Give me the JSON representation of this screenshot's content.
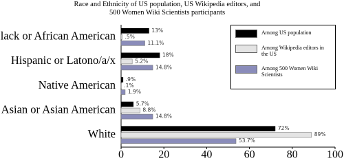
{
  "chart_data": {
    "type": "hbar",
    "title": "Race and Ethnicity of US population, US Wikipedia editors, and 500 Women Wiki Scientists participants",
    "categories": [
      "Black or African American",
      "Hispanic or Latono/a/x",
      "Native American",
      "Asian or Asian American",
      "White"
    ],
    "series": [
      {
        "name": "Among US population",
        "color": "#000000",
        "values": [
          13,
          18,
          0.9,
          5.7,
          72
        ],
        "value_labels": [
          "13%",
          "18%",
          ".9%",
          "5.7%",
          "72%"
        ]
      },
      {
        "name": "Among Wikipedia editors in the US",
        "color": "#e4e4e4",
        "values": [
          0.5,
          5.2,
          0.1,
          8.8,
          89
        ],
        "value_labels": [
          ".5%",
          "5.2%",
          ".1%",
          "8.8%",
          "89%"
        ]
      },
      {
        "name": "Among 500 Women Wiki Scientists",
        "color": "#8a8cba",
        "values": [
          11.1,
          14.8,
          1.9,
          14.8,
          53.7
        ],
        "value_labels": [
          "11.1%",
          "14.8%",
          "1.9%",
          "14.8%",
          "53.7%"
        ]
      }
    ],
    "xlim": [
      0,
      100
    ],
    "xticks": [
      0,
      20,
      40,
      60,
      80,
      100
    ],
    "legend": "upper right"
  }
}
